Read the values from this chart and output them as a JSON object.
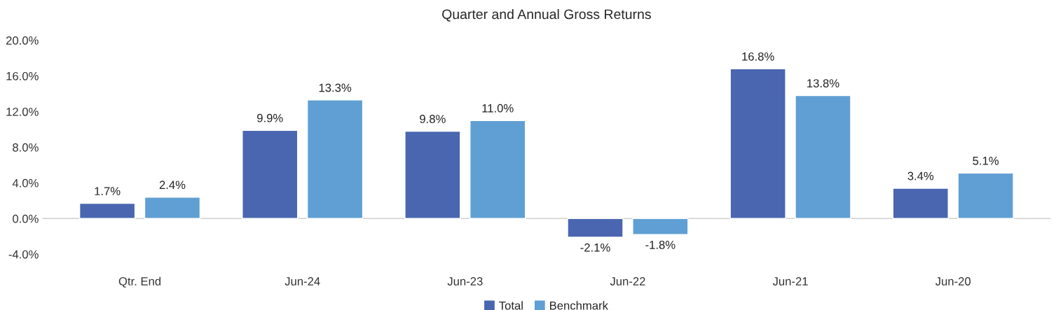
{
  "chart_data": {
    "type": "bar",
    "title": "Quarter and Annual Gross Returns",
    "categories": [
      "Qtr. End",
      "Jun-24",
      "Jun-23",
      "Jun-22",
      "Jun-21",
      "Jun-20"
    ],
    "series": [
      {
        "name": "Total",
        "color": "#4a66b0",
        "values": [
          1.7,
          9.9,
          9.8,
          -2.1,
          16.8,
          3.4
        ],
        "value_labels": [
          "1.7%",
          "9.9%",
          "9.8%",
          "-2.1%",
          "16.8%",
          "3.4%"
        ]
      },
      {
        "name": "Benchmark",
        "color": "#609fd3",
        "values": [
          2.4,
          13.3,
          11.0,
          -1.8,
          13.8,
          5.1
        ],
        "value_labels": [
          "2.4%",
          "13.3%",
          "11.0%",
          "-1.8%",
          "13.8%",
          "5.1%"
        ]
      }
    ],
    "ylim": [
      -4,
      20
    ],
    "yticks": [
      {
        "value": -4,
        "label": "-4.0%"
      },
      {
        "value": 0,
        "label": "0.0%"
      },
      {
        "value": 4,
        "label": "4.0%"
      },
      {
        "value": 8,
        "label": "8.0%"
      },
      {
        "value": 12,
        "label": "12.0%"
      },
      {
        "value": 16,
        "label": "16.0%"
      },
      {
        "value": 20,
        "label": "20.0%"
      }
    ],
    "ref_lines": [
      {
        "axis": "y",
        "value": 0,
        "color": "#d0d0d0"
      }
    ],
    "grid": false,
    "legend": "bottom"
  }
}
